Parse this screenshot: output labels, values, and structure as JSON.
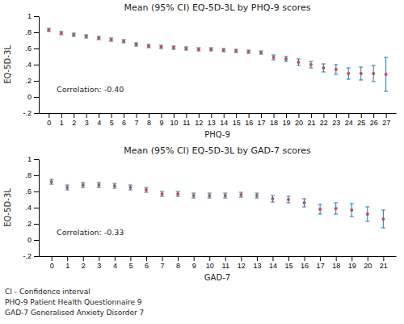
{
  "chart_data": [
    {
      "type": "scatter",
      "title": "Mean (95% CI) EQ-5D-3L by PHQ-9 scores",
      "x_label": "PHQ-9",
      "y_label": "EQ-5D-3L",
      "annotations": [
        "Correlation: -0.40"
      ],
      "color": "#c0504d",
      "x": [
        0,
        1,
        2,
        3,
        4,
        5,
        6,
        7,
        8,
        9,
        10,
        11,
        12,
        13,
        14,
        15,
        16,
        17,
        18,
        19,
        20,
        21,
        22,
        23,
        24,
        25,
        26,
        27
      ],
      "values": [
        0.83,
        0.79,
        0.77,
        0.75,
        0.73,
        0.71,
        0.69,
        0.65,
        0.63,
        0.62,
        0.61,
        0.6,
        0.59,
        0.59,
        0.58,
        0.57,
        0.56,
        0.55,
        0.49,
        0.47,
        0.43,
        0.4,
        0.36,
        0.34,
        0.29,
        0.29,
        0.29,
        0.28
      ],
      "lower": [
        0.81,
        0.77,
        0.75,
        0.73,
        0.71,
        0.69,
        0.67,
        0.63,
        0.61,
        0.6,
        0.59,
        0.58,
        0.57,
        0.57,
        0.56,
        0.55,
        0.54,
        0.53,
        0.46,
        0.44,
        0.39,
        0.36,
        0.31,
        0.28,
        0.22,
        0.21,
        0.19,
        0.07
      ],
      "upper": [
        0.85,
        0.81,
        0.79,
        0.77,
        0.75,
        0.73,
        0.71,
        0.67,
        0.65,
        0.64,
        0.63,
        0.62,
        0.61,
        0.61,
        0.6,
        0.59,
        0.58,
        0.57,
        0.52,
        0.5,
        0.47,
        0.44,
        0.41,
        0.4,
        0.36,
        0.37,
        0.39,
        0.49
      ],
      "xlim": [
        -0.8,
        27.8
      ],
      "xticks": [
        0,
        1,
        2,
        3,
        4,
        5,
        6,
        7,
        8,
        9,
        10,
        11,
        12,
        13,
        14,
        15,
        16,
        17,
        18,
        19,
        20,
        21,
        22,
        23,
        24,
        25,
        26,
        27
      ],
      "ylim": [
        -0.2,
        1.0
      ],
      "yticks": [
        {
          "value": -0.2,
          "label": "-.2"
        },
        0,
        {
          "value": 0.2,
          "label": ".2"
        },
        {
          "value": 0.4,
          "label": ".4"
        },
        {
          "value": 0.6,
          "label": ".6"
        },
        {
          "value": 0.8,
          "label": ".8"
        },
        1
      ]
    },
    {
      "type": "scatter",
      "title": "Mean (95% CI) EQ-5D-3L by GAD-7 scores",
      "x_label": "GAD-7",
      "y_label": "EQ-5D-3L",
      "annotations": [
        "Correlation: -0.33"
      ],
      "color": "#c0504d",
      "x": [
        0,
        1,
        2,
        3,
        4,
        5,
        6,
        7,
        8,
        9,
        10,
        11,
        12,
        13,
        14,
        15,
        16,
        17,
        18,
        19,
        20,
        21
      ],
      "values": [
        0.72,
        0.65,
        0.68,
        0.68,
        0.67,
        0.65,
        0.62,
        0.57,
        0.57,
        0.55,
        0.55,
        0.55,
        0.56,
        0.55,
        0.51,
        0.5,
        0.46,
        0.38,
        0.39,
        0.37,
        0.32,
        0.26
      ],
      "lower": [
        0.69,
        0.62,
        0.65,
        0.65,
        0.64,
        0.62,
        0.59,
        0.54,
        0.54,
        0.52,
        0.52,
        0.52,
        0.53,
        0.52,
        0.47,
        0.46,
        0.41,
        0.32,
        0.32,
        0.29,
        0.23,
        0.15
      ],
      "upper": [
        0.75,
        0.68,
        0.71,
        0.71,
        0.7,
        0.68,
        0.65,
        0.6,
        0.6,
        0.58,
        0.58,
        0.58,
        0.59,
        0.58,
        0.55,
        0.54,
        0.51,
        0.44,
        0.46,
        0.45,
        0.41,
        0.37
      ],
      "xlim": [
        -0.8,
        21.8
      ],
      "xticks": [
        0,
        1,
        2,
        3,
        4,
        5,
        6,
        7,
        8,
        9,
        10,
        11,
        12,
        13,
        14,
        15,
        16,
        17,
        18,
        19,
        20,
        21
      ],
      "ylim": [
        -0.2,
        1.0
      ],
      "yticks": [
        {
          "value": -0.2,
          "label": "-.2"
        },
        0,
        {
          "value": 0.2,
          "label": ".2"
        },
        {
          "value": 0.4,
          "label": ".4"
        },
        {
          "value": 0.6,
          "label": ".6"
        },
        {
          "value": 0.8,
          "label": ".8"
        },
        1
      ]
    }
  ],
  "footnote": [
    "CI - Confidence interval",
    "PHQ-9 Patient Health Questionnaire 9",
    "GAD-7 Generalised Anxiety Disorder 7"
  ]
}
